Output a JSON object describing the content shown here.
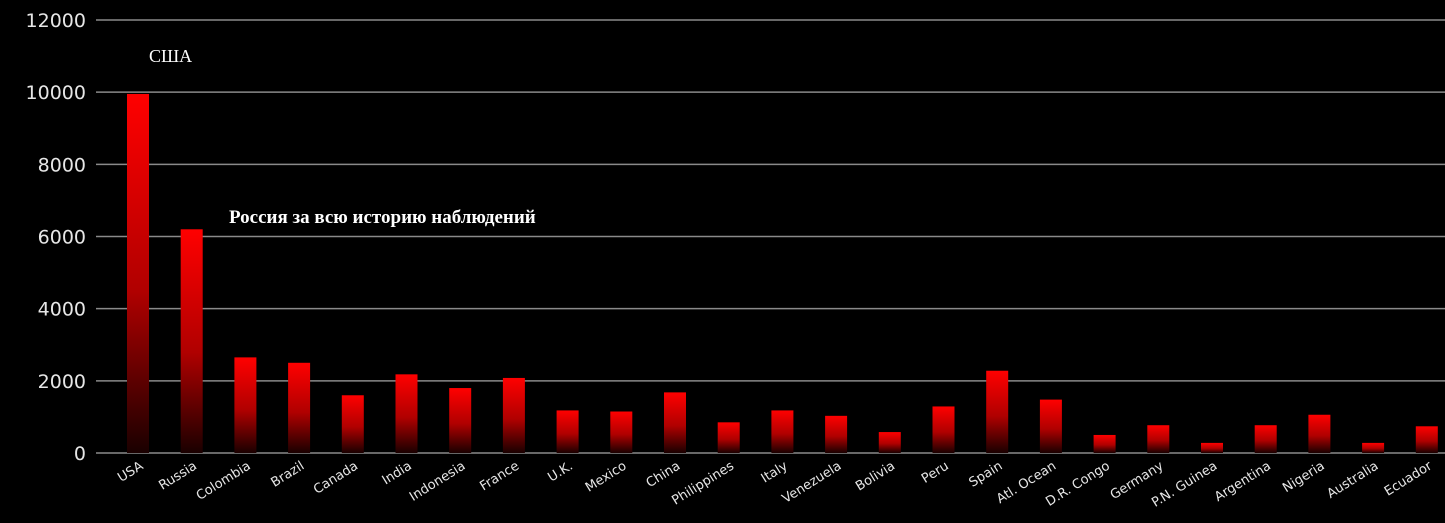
{
  "chart_data": {
    "type": "bar",
    "title": "",
    "xlabel": "",
    "ylabel": "",
    "ylim": [
      0,
      12000
    ],
    "yticks": [
      0,
      2000,
      4000,
      6000,
      8000,
      10000,
      12000
    ],
    "grid": true,
    "categories": [
      "USA",
      "Russia",
      "Colombia",
      "Brazil",
      "Canada",
      "India",
      "Indonesia",
      "France",
      "U.K.",
      "Mexico",
      "China",
      "Philippines",
      "Italy",
      "Venezuela",
      "Bolivia",
      "Peru",
      "Spain",
      "Atl. Ocean",
      "D.R. Congo",
      "Germany",
      "P.N. Guinea",
      "Argentina",
      "Nigeria",
      "Australia",
      "Ecuador"
    ],
    "values": [
      9950,
      6200,
      2650,
      2500,
      1600,
      2180,
      1800,
      2080,
      1180,
      1150,
      1680,
      850,
      1180,
      1030,
      580,
      1290,
      2280,
      1480,
      500,
      770,
      280,
      770,
      1060,
      280,
      740
    ],
    "annotations": [
      {
        "text": "США"
      },
      {
        "text": "Россия за всю историю наблюдений"
      }
    ],
    "colors": {
      "bar_top": "#ff0000",
      "bar_bottom": "#1a0000",
      "background": "#000000",
      "grid": "#8a8a8a"
    }
  }
}
